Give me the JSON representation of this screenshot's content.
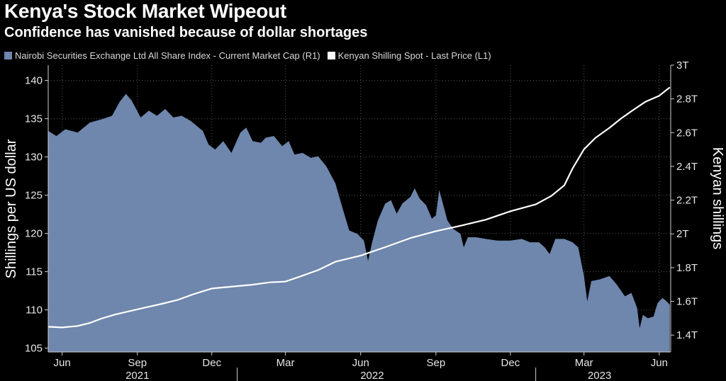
{
  "title": "Kenya's Stock Market Wipeout",
  "subtitle": "Confidence has vanished because of dollar shortages",
  "colors": {
    "background": "#000000",
    "area": "#6f86ad",
    "line": "#ffffff",
    "grid": "#5a5a5a"
  },
  "legend": [
    {
      "label": "Nairobi Securities Exchange Ltd All Share Index - Current Market Cap (R1)",
      "color": "#6f86ad"
    },
    {
      "label": "Kenyan Shilling Spot - Last Price (L1)",
      "color": "#ffffff"
    }
  ],
  "chart_data": {
    "type": "area",
    "title": "Kenya's Stock Market Wipeout",
    "subtitle": "Confidence has vanished because of dollar shortages",
    "x_range": [
      "2021-05-15",
      "2023-06-15"
    ],
    "left_axis": {
      "label": "Shillings per US dollar",
      "range": [
        104.5,
        142
      ],
      "ticks": [
        105,
        110,
        115,
        120,
        125,
        130,
        135,
        140
      ]
    },
    "right_axis": {
      "label": "Kenyan shillings",
      "range": [
        1.3,
        3.0
      ],
      "ticks": [
        1.4,
        1.6,
        1.8,
        2.0,
        2.2,
        2.4,
        2.6,
        2.8,
        3.0
      ],
      "tick_labels": [
        "1.4T",
        "1.6T",
        "1.8T",
        "2T",
        "2.2T",
        "2.4T",
        "2.6T",
        "2.8T",
        "3T"
      ]
    },
    "x_ticks": [
      {
        "label": "Jun",
        "date": "2021-06-01"
      },
      {
        "label": "Sep",
        "date": "2021-09-01"
      },
      {
        "label": "Dec",
        "date": "2021-12-01"
      },
      {
        "label": "Mar",
        "date": "2022-03-01"
      },
      {
        "label": "Jun",
        "date": "2022-06-01"
      },
      {
        "label": "Sep",
        "date": "2022-09-01"
      },
      {
        "label": "Dec",
        "date": "2022-12-01"
      },
      {
        "label": "Mar",
        "date": "2023-03-01"
      },
      {
        "label": "Jun",
        "date": "2023-06-01"
      }
    ],
    "year_labels": [
      {
        "label": "2021",
        "center": "2021-09-01"
      },
      {
        "label": "2022",
        "center": "2022-06-15"
      },
      {
        "label": "2023",
        "center": "2023-03-20"
      }
    ],
    "year_dividers": [
      "2022-01-01",
      "2023-01-01"
    ],
    "series": [
      {
        "name": "Nairobi Securities Exchange Ltd All Share Index - Current Market Cap (R1)",
        "axis": "right",
        "style": "area",
        "points": [
          [
            "2021-05-15",
            2.61
          ],
          [
            "2021-05-25",
            2.58
          ],
          [
            "2021-06-05",
            2.62
          ],
          [
            "2021-06-20",
            2.6
          ],
          [
            "2021-07-05",
            2.66
          ],
          [
            "2021-07-20",
            2.68
          ],
          [
            "2021-08-01",
            2.7
          ],
          [
            "2021-08-10",
            2.78
          ],
          [
            "2021-08-18",
            2.83
          ],
          [
            "2021-08-25",
            2.79
          ],
          [
            "2021-09-05",
            2.69
          ],
          [
            "2021-09-15",
            2.73
          ],
          [
            "2021-09-25",
            2.7
          ],
          [
            "2021-10-05",
            2.74
          ],
          [
            "2021-10-15",
            2.69
          ],
          [
            "2021-10-25",
            2.7
          ],
          [
            "2021-11-05",
            2.67
          ],
          [
            "2021-11-20",
            2.61
          ],
          [
            "2021-11-27",
            2.53
          ],
          [
            "2021-12-05",
            2.5
          ],
          [
            "2021-12-15",
            2.55
          ],
          [
            "2021-12-25",
            2.48
          ],
          [
            "2022-01-05",
            2.6
          ],
          [
            "2022-01-12",
            2.63
          ],
          [
            "2022-01-20",
            2.55
          ],
          [
            "2022-01-30",
            2.54
          ],
          [
            "2022-02-05",
            2.57
          ],
          [
            "2022-02-15",
            2.58
          ],
          [
            "2022-02-25",
            2.52
          ],
          [
            "2022-03-05",
            2.55
          ],
          [
            "2022-03-12",
            2.47
          ],
          [
            "2022-03-22",
            2.48
          ],
          [
            "2022-04-01",
            2.45
          ],
          [
            "2022-04-10",
            2.46
          ],
          [
            "2022-04-20",
            2.4
          ],
          [
            "2022-05-01",
            2.3
          ],
          [
            "2022-05-10",
            2.15
          ],
          [
            "2022-05-18",
            2.02
          ],
          [
            "2022-05-28",
            2.0
          ],
          [
            "2022-06-05",
            1.96
          ],
          [
            "2022-06-10",
            1.84
          ],
          [
            "2022-06-15",
            1.95
          ],
          [
            "2022-06-22",
            2.08
          ],
          [
            "2022-07-01",
            2.18
          ],
          [
            "2022-07-08",
            2.2
          ],
          [
            "2022-07-15",
            2.12
          ],
          [
            "2022-07-22",
            2.18
          ],
          [
            "2022-08-01",
            2.22
          ],
          [
            "2022-08-06",
            2.27
          ],
          [
            "2022-08-12",
            2.21
          ],
          [
            "2022-08-20",
            2.17
          ],
          [
            "2022-08-27",
            2.09
          ],
          [
            "2022-09-01",
            2.11
          ],
          [
            "2022-09-05",
            2.26
          ],
          [
            "2022-09-10",
            2.17
          ],
          [
            "2022-09-15",
            2.08
          ],
          [
            "2022-09-22",
            2.03
          ],
          [
            "2022-10-01",
            2.0
          ],
          [
            "2022-10-05",
            1.92
          ],
          [
            "2022-10-10",
            1.98
          ],
          [
            "2022-10-20",
            1.98
          ],
          [
            "2022-11-01",
            1.97
          ],
          [
            "2022-11-15",
            1.96
          ],
          [
            "2022-12-01",
            1.96
          ],
          [
            "2022-12-15",
            1.97
          ],
          [
            "2022-12-25",
            1.95
          ],
          [
            "2023-01-05",
            1.95
          ],
          [
            "2023-01-12",
            1.92
          ],
          [
            "2023-01-18",
            1.88
          ],
          [
            "2023-01-25",
            1.97
          ],
          [
            "2023-02-05",
            1.97
          ],
          [
            "2023-02-15",
            1.95
          ],
          [
            "2023-02-22",
            1.92
          ],
          [
            "2023-03-01",
            1.75
          ],
          [
            "2023-03-05",
            1.6
          ],
          [
            "2023-03-10",
            1.72
          ],
          [
            "2023-03-20",
            1.73
          ],
          [
            "2023-04-01",
            1.75
          ],
          [
            "2023-04-10",
            1.7
          ],
          [
            "2023-04-20",
            1.63
          ],
          [
            "2023-04-28",
            1.65
          ],
          [
            "2023-05-05",
            1.56
          ],
          [
            "2023-05-08",
            1.44
          ],
          [
            "2023-05-12",
            1.52
          ],
          [
            "2023-05-18",
            1.5
          ],
          [
            "2023-05-25",
            1.51
          ],
          [
            "2023-05-30",
            1.59
          ],
          [
            "2023-06-05",
            1.62
          ],
          [
            "2023-06-10",
            1.6
          ],
          [
            "2023-06-14",
            1.58
          ]
        ]
      },
      {
        "name": "Kenyan Shilling Spot - Last Price (L1)",
        "axis": "left",
        "style": "line",
        "points": [
          [
            "2021-05-15",
            107.8
          ],
          [
            "2021-06-01",
            107.7
          ],
          [
            "2021-06-20",
            107.9
          ],
          [
            "2021-07-05",
            108.3
          ],
          [
            "2021-07-20",
            108.9
          ],
          [
            "2021-08-05",
            109.4
          ],
          [
            "2021-08-25",
            109.9
          ],
          [
            "2021-09-10",
            110.3
          ],
          [
            "2021-10-01",
            110.8
          ],
          [
            "2021-10-20",
            111.3
          ],
          [
            "2021-11-10",
            112.1
          ],
          [
            "2021-12-01",
            112.8
          ],
          [
            "2021-12-31",
            113.1
          ],
          [
            "2022-01-20",
            113.3
          ],
          [
            "2022-02-10",
            113.6
          ],
          [
            "2022-03-01",
            113.7
          ],
          [
            "2022-03-20",
            114.4
          ],
          [
            "2022-04-10",
            115.2
          ],
          [
            "2022-05-01",
            116.3
          ],
          [
            "2022-06-01",
            117.1
          ],
          [
            "2022-07-01",
            118.2
          ],
          [
            "2022-08-01",
            119.4
          ],
          [
            "2022-09-01",
            120.3
          ],
          [
            "2022-10-01",
            121.0
          ],
          [
            "2022-11-01",
            121.8
          ],
          [
            "2022-12-01",
            122.9
          ],
          [
            "2023-01-01",
            123.8
          ],
          [
            "2023-01-20",
            124.9
          ],
          [
            "2023-02-05",
            126.3
          ],
          [
            "2023-02-15",
            128.5
          ],
          [
            "2023-03-01",
            131.0
          ],
          [
            "2023-03-15",
            132.5
          ],
          [
            "2023-04-01",
            133.8
          ],
          [
            "2023-04-15",
            135.0
          ],
          [
            "2023-05-01",
            136.2
          ],
          [
            "2023-05-15",
            137.2
          ],
          [
            "2023-06-01",
            138.0
          ],
          [
            "2023-06-14",
            139.1
          ]
        ]
      }
    ]
  }
}
